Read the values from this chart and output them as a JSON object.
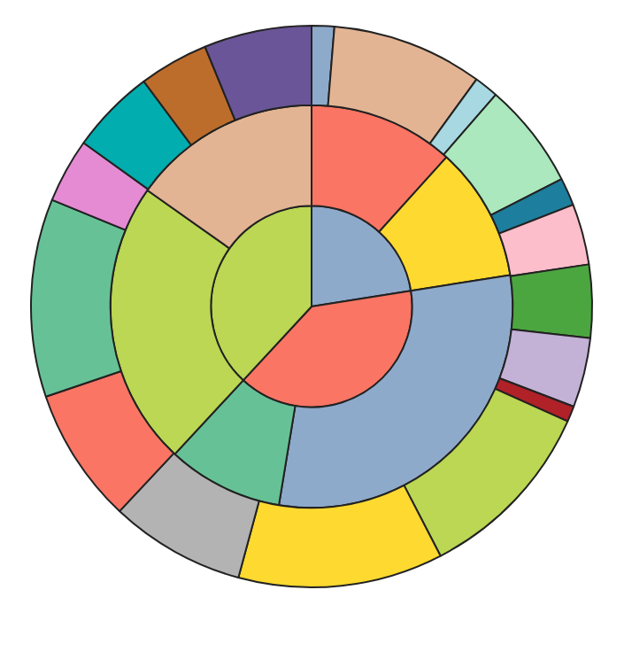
{
  "chart_data": {
    "type": "pie",
    "series": [
      {
        "values": [
          1.3,
          8.7,
          1.4,
          6.1,
          1.6,
          3.5,
          4.2,
          4.0,
          0.9,
          10.7,
          11.8,
          7.8,
          7.8,
          11.4,
          3.7,
          4.9,
          4.0,
          6.2
        ],
        "colors": [
          "#8eaacb",
          "#e3b493",
          "#a8d8e2",
          "#abe8bd",
          "#1d7e9d",
          "#fdbecb",
          "#4ca640",
          "#c3b1d6",
          "#b02128",
          "#bbd753",
          "#fed930",
          "#b3b3b3",
          "#fa7564",
          "#66c296",
          "#e48bd4",
          "#01adae",
          "#bd6d2b",
          "#6a5598"
        ]
      },
      {
        "values": [
          11.7,
          10.8,
          30.1,
          9.3,
          22.9,
          15.2
        ],
        "colors": [
          "#fa7564",
          "#fed930",
          "#8eaacb",
          "#66c296",
          "#bbd753",
          "#e3b493"
        ]
      },
      {
        "values": [
          22.5,
          39.4,
          38.1
        ],
        "colors": [
          "#8eaacb",
          "#fa7564",
          "#bbd753"
        ]
      }
    ]
  }
}
